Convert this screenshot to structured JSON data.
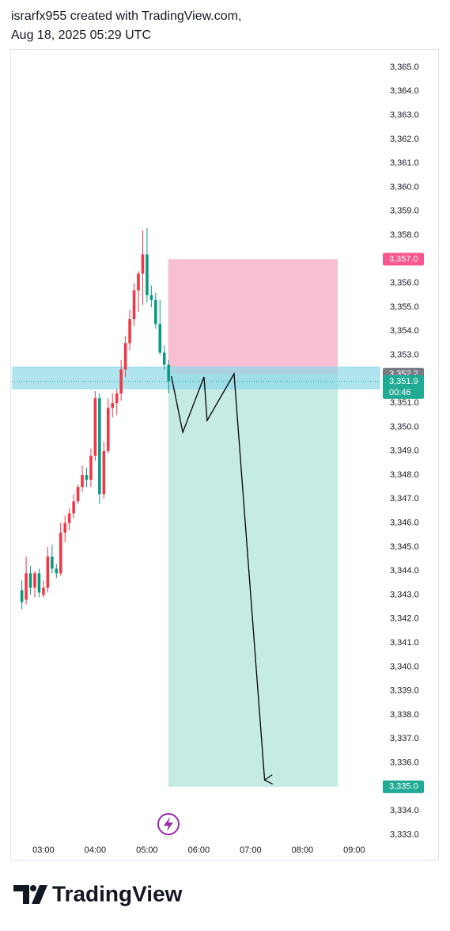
{
  "attribution": "israrfx955 created with TradingView.com,",
  "timestamp": "Aug 18, 2025 05:29 UTC",
  "brand": "TradingView",
  "chart_data": {
    "type": "candlestick",
    "x": [
      2.5833,
      2.6667,
      2.75,
      2.8333,
      2.9167,
      3,
      3.0833,
      3.1667,
      3.25,
      3.3333,
      3.4167,
      3.5,
      3.5833,
      3.6667,
      3.75,
      3.8333,
      3.9167,
      4,
      4.0833,
      4.1667,
      4.25,
      4.3333,
      4.4167,
      4.5,
      4.5833,
      4.6667,
      4.75,
      4.8333,
      4.9167,
      5,
      5.0833,
      5.1667,
      5.25,
      5.3333,
      5.4167
    ],
    "open": [
      3343.2,
      3342.8,
      3343.9,
      3343.3,
      3343.9,
      3343.0,
      3343.3,
      3344.6,
      3344.1,
      3343.9,
      3345.6,
      3346.0,
      3346.4,
      3346.9,
      3347.5,
      3348.0,
      3347.8,
      3348.8,
      3351.2,
      3347.2,
      3349.0,
      3350.8,
      3351.0,
      3351.4,
      3352.4,
      3353.5,
      3354.5,
      3355.7,
      3356.4,
      3357.2,
      3355.5,
      3355.3,
      3354.3,
      3353.1,
      3352.6
    ],
    "high": [
      3343.6,
      3344.6,
      3344.2,
      3344.0,
      3344.1,
      3343.6,
      3345.0,
      3345.1,
      3344.3,
      3346.0,
      3346.3,
      3346.6,
      3347.2,
      3347.6,
      3348.4,
      3348.3,
      3349.1,
      3351.5,
      3351.4,
      3349.4,
      3351.2,
      3351.4,
      3351.6,
      3352.8,
      3353.8,
      3354.9,
      3356.0,
      3356.5,
      3358.2,
      3358.3,
      3355.9,
      3355.6,
      3355.3,
      3353.4,
      3352.8
    ],
    "low": [
      3342.4,
      3342.6,
      3343.0,
      3342.9,
      3342.9,
      3342.9,
      3343.1,
      3343.9,
      3343.7,
      3343.8,
      3345.2,
      3345.7,
      3346.2,
      3346.8,
      3347.3,
      3347.5,
      3347.5,
      3348.6,
      3346.8,
      3347.0,
      3348.9,
      3350.4,
      3350.5,
      3351.1,
      3352.1,
      3353.2,
      3354.2,
      3354.8,
      3355.1,
      3355.2,
      3355.0,
      3354.1,
      3353.0,
      3352.4,
      3351.4
    ],
    "close": [
      3342.7,
      3343.9,
      3343.3,
      3343.9,
      3343.1,
      3343.3,
      3344.6,
      3344.1,
      3343.9,
      3345.6,
      3346.0,
      3346.4,
      3346.9,
      3347.5,
      3348.0,
      3347.8,
      3348.8,
      3351.2,
      3347.2,
      3349.0,
      3350.8,
      3351.0,
      3351.4,
      3352.4,
      3353.5,
      3354.5,
      3355.7,
      3356.4,
      3357.2,
      3355.5,
      3355.3,
      3354.3,
      3353.1,
      3352.6,
      3351.9
    ],
    "up_color": "#f23645",
    "down_color": "#089981",
    "xlim": [
      2.36,
      9.49
    ],
    "ylim": [
      3332.75,
      3365.76
    ],
    "xticks": [
      {
        "value": 3,
        "label": "03:00"
      },
      {
        "value": 4,
        "label": "04:00"
      },
      {
        "value": 5,
        "label": "05:00"
      },
      {
        "value": 6,
        "label": "06:00"
      },
      {
        "value": 7,
        "label": "07:00"
      },
      {
        "value": 8,
        "label": "08:00"
      },
      {
        "value": 9,
        "label": "09:00"
      }
    ],
    "yticks": [
      {
        "value": 3365,
        "label": "3,365.0"
      },
      {
        "value": 3364,
        "label": "3,364.0"
      },
      {
        "value": 3363,
        "label": "3,363.0"
      },
      {
        "value": 3362,
        "label": "3,362.0"
      },
      {
        "value": 3361,
        "label": "3,361.0"
      },
      {
        "value": 3360,
        "label": "3,360.0"
      },
      {
        "value": 3359,
        "label": "3,359.0"
      },
      {
        "value": 3358,
        "label": "3,358.0"
      },
      {
        "value": 3356,
        "label": "3,356.0"
      },
      {
        "value": 3355,
        "label": "3,355.0"
      },
      {
        "value": 3354,
        "label": "3,354.0"
      },
      {
        "value": 3353,
        "label": "3,353.0"
      },
      {
        "value": 3351,
        "label": "3,351.0"
      },
      {
        "value": 3350,
        "label": "3,350.0"
      },
      {
        "value": 3349,
        "label": "3,349.0"
      },
      {
        "value": 3348,
        "label": "3,348.0"
      },
      {
        "value": 3347,
        "label": "3,347.0"
      },
      {
        "value": 3346,
        "label": "3,346.0"
      },
      {
        "value": 3345,
        "label": "3,345.0"
      },
      {
        "value": 3344,
        "label": "3,344.0"
      },
      {
        "value": 3343,
        "label": "3,343.0"
      },
      {
        "value": 3342,
        "label": "3,342.0"
      },
      {
        "value": 3341,
        "label": "3,341.0"
      },
      {
        "value": 3340,
        "label": "3,340.0"
      },
      {
        "value": 3339,
        "label": "3,339.0"
      },
      {
        "value": 3338,
        "label": "3,338.0"
      },
      {
        "value": 3337,
        "label": "3,337.0"
      },
      {
        "value": 3336,
        "label": "3,336.0"
      },
      {
        "value": 3334,
        "label": "3,334.0"
      },
      {
        "value": 3333,
        "label": "3,333.0"
      }
    ],
    "price_labels": [
      {
        "value": 3357.0,
        "label": "3,357.0",
        "color": "#f7578c"
      },
      {
        "value": 3352.2,
        "label": "3,352.2",
        "color": "#787b86"
      },
      {
        "value": 3351.9,
        "label": "3,351.9",
        "sublabel": "00:46",
        "color": "#22ab94"
      },
      {
        "value": 3335.0,
        "label": "3,335.0",
        "color": "#22ab94"
      }
    ],
    "zone": {
      "low": 3351.6,
      "high": 3352.5,
      "color": "#8fd9e8"
    },
    "position": {
      "x_start": 5.41,
      "x_end": 8.68,
      "entry": 3352.2,
      "stop": 3357.0,
      "target": 3335.0,
      "stop_color": "#f8bfd4",
      "target_color": "#c6ebe4"
    },
    "drawing": {
      "x": [
        5.47,
        5.69,
        6.1,
        6.16,
        6.68,
        7.27
      ],
      "y": [
        3352.12,
        3349.78,
        3352.09,
        3350.27,
        3352.22,
        3335.28
      ],
      "color": "#000000"
    }
  }
}
